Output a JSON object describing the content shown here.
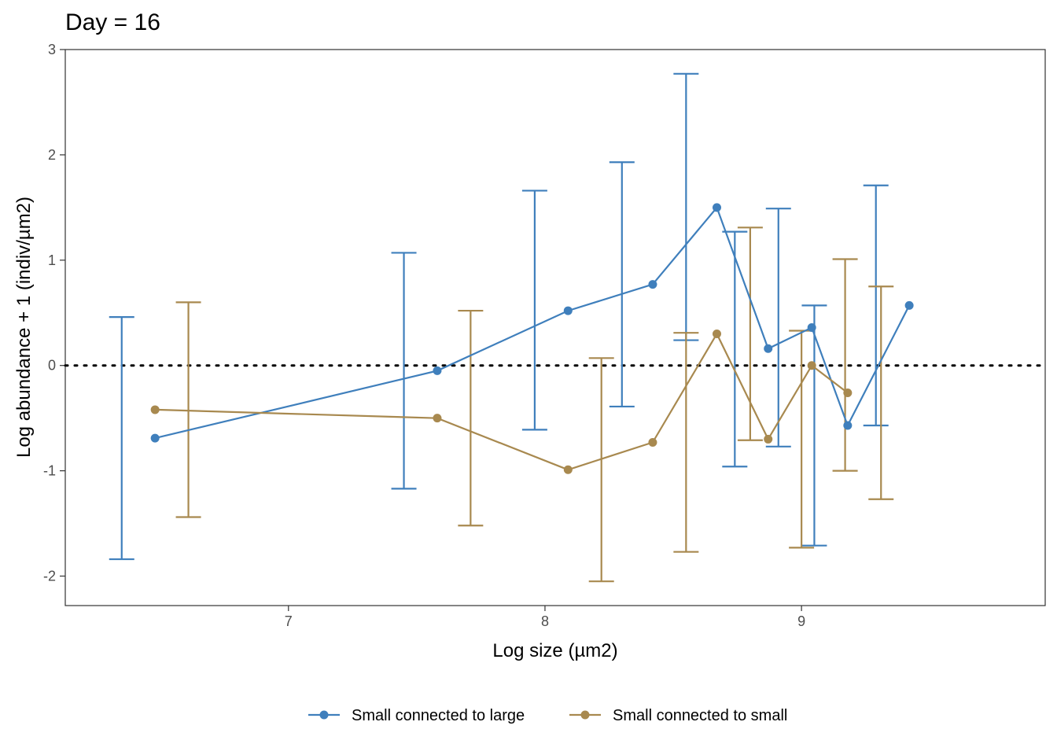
{
  "chart_data": {
    "type": "line",
    "title": "Day = 16",
    "xlabel": "Log size (µm2)",
    "ylabel": "Log abundance + 1 (indiv/µm2)",
    "xlim": [
      6.13,
      9.95
    ],
    "ylim": [
      -2.28,
      3.0
    ],
    "x_ticks": [
      7,
      8,
      9
    ],
    "x_tick_labels": [
      "7",
      "8",
      "9"
    ],
    "y_ticks": [
      -2,
      -1,
      0,
      1,
      2,
      3
    ],
    "y_tick_labels": [
      "-2",
      "-1",
      "0",
      "1",
      "2",
      "3"
    ],
    "reference_line": {
      "y": 0,
      "style": "dotted",
      "color": "#000000"
    },
    "legend_position": "bottom",
    "grid": false,
    "series": [
      {
        "name": "Small connected to large",
        "color": "#3f7fbc",
        "points": [
          {
            "x": 6.48,
            "y": -0.69,
            "lower": -1.84,
            "upper": 0.46,
            "errorbar_x": 6.35
          },
          {
            "x": 7.58,
            "y": -0.05,
            "lower": -1.17,
            "upper": 1.07,
            "errorbar_x": 7.45
          },
          {
            "x": 8.09,
            "y": 0.52,
            "lower": -0.61,
            "upper": 1.66,
            "errorbar_x": 7.96
          },
          {
            "x": 8.42,
            "y": 0.77,
            "lower": -0.39,
            "upper": 1.93,
            "errorbar_x": 8.3
          },
          {
            "x": 8.67,
            "y": 1.5,
            "lower": 0.24,
            "upper": 2.77,
            "errorbar_x": 8.55
          },
          {
            "x": 8.87,
            "y": 0.16,
            "lower": -0.96,
            "upper": 1.27,
            "errorbar_x": 8.74
          },
          {
            "x": 9.04,
            "y": 0.36,
            "lower": -0.77,
            "upper": 1.49,
            "errorbar_x": 8.91
          },
          {
            "x": 9.18,
            "y": -0.57,
            "lower": -1.71,
            "upper": 0.57,
            "errorbar_x": 9.05
          },
          {
            "x": 9.42,
            "y": 0.57,
            "lower": -0.57,
            "upper": 1.71,
            "errorbar_x": 9.29
          }
        ]
      },
      {
        "name": "Small connected to small",
        "color": "#a8894f",
        "points": [
          {
            "x": 6.48,
            "y": -0.42,
            "lower": -1.44,
            "upper": 0.6,
            "errorbar_x": 6.61
          },
          {
            "x": 7.58,
            "y": -0.5,
            "lower": -1.52,
            "upper": 0.52,
            "errorbar_x": 7.71
          },
          {
            "x": 8.09,
            "y": -0.99,
            "lower": -2.05,
            "upper": 0.07,
            "errorbar_x": 8.22
          },
          {
            "x": 8.42,
            "y": -0.73,
            "lower": -1.77,
            "upper": 0.31,
            "errorbar_x": 8.55
          },
          {
            "x": 8.67,
            "y": 0.3,
            "lower": -0.71,
            "upper": 1.31,
            "errorbar_x": 8.8
          },
          {
            "x": 8.87,
            "y": -0.7,
            "lower": -1.73,
            "upper": 0.33,
            "errorbar_x": 9.0
          },
          {
            "x": 9.04,
            "y": 0.0,
            "lower": -1.0,
            "upper": 1.01,
            "errorbar_x": 9.17
          },
          {
            "x": 9.18,
            "y": -0.26,
            "lower": -1.27,
            "upper": 0.75,
            "errorbar_x": 9.31
          }
        ]
      }
    ]
  }
}
